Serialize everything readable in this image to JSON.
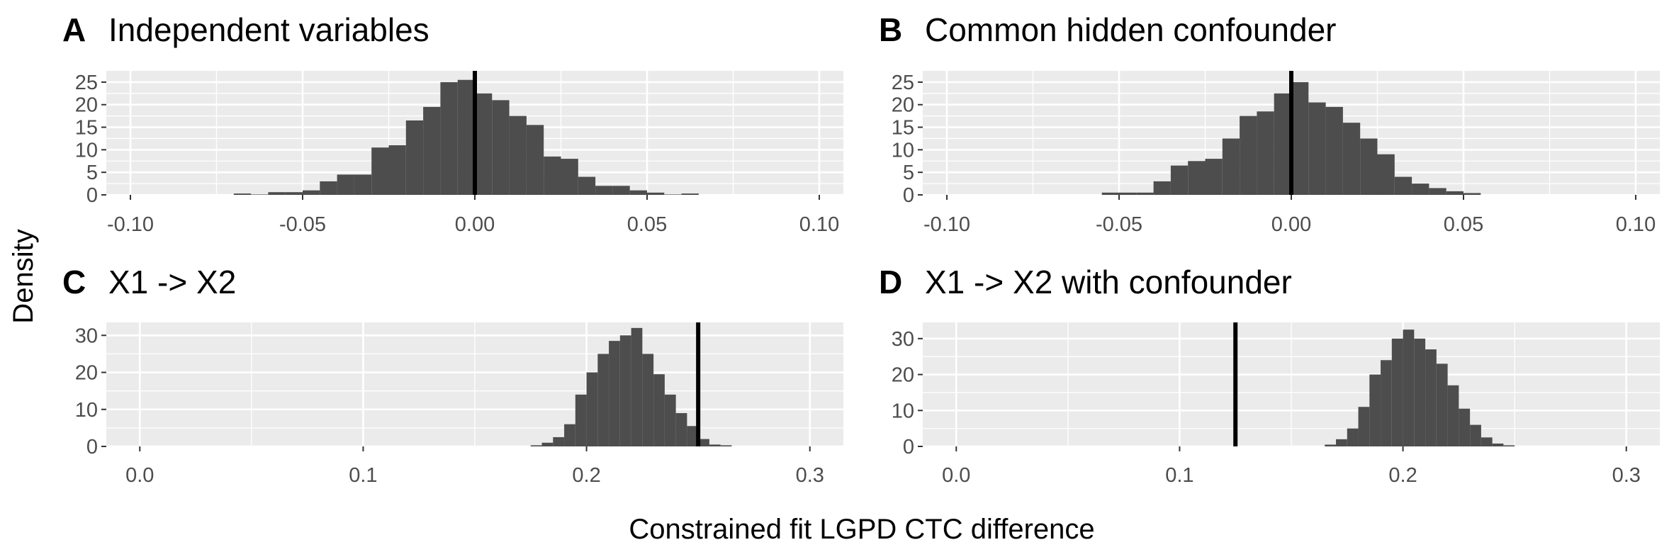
{
  "figure": {
    "ylabel": "Density",
    "xlabel": "Constrained fit LGPD CTC difference"
  },
  "colors": {
    "panel_bg": "#ebebeb",
    "grid": "#ffffff",
    "bar_fill": "#4d4d4d",
    "ref_line": "#000000",
    "tick_text": "#4d4d4d"
  },
  "chart_data": [
    {
      "panel": "A",
      "title": "Independent variables",
      "type": "bar",
      "xlim": [
        -0.107,
        0.107
      ],
      "ylim": [
        0,
        27.5
      ],
      "xticks": [
        -0.1,
        -0.05,
        0.0,
        0.05,
        0.1
      ],
      "xtick_labels": [
        "-0.10",
        "-0.05",
        "0.00",
        "0.05",
        "0.10"
      ],
      "yticks": [
        0,
        5,
        10,
        15,
        20,
        25
      ],
      "ytick_labels": [
        "0",
        "5",
        "10",
        "15",
        "20",
        "25"
      ],
      "binwidth": 0.005,
      "bin_starts": [
        -0.07,
        -0.065,
        -0.06,
        -0.055,
        -0.05,
        -0.045,
        -0.04,
        -0.035,
        -0.03,
        -0.025,
        -0.02,
        -0.015,
        -0.01,
        -0.005,
        0.0,
        0.005,
        0.01,
        0.015,
        0.02,
        0.025,
        0.03,
        0.035,
        0.04,
        0.045,
        0.05,
        0.055,
        0.06,
        0.065
      ],
      "density": [
        0.3,
        0.1,
        0.6,
        0.6,
        1.0,
        3.0,
        4.5,
        4.5,
        10.5,
        11.0,
        16.5,
        19.5,
        25.0,
        25.5,
        22.5,
        21.0,
        17.5,
        15.5,
        8.5,
        8.0,
        4.0,
        2.0,
        2.0,
        1.0,
        0.5,
        0.1,
        0.3,
        0.0
      ],
      "reference_line": 0.0
    },
    {
      "panel": "B",
      "title": "Common hidden confounder",
      "type": "bar",
      "xlim": [
        -0.107,
        0.107
      ],
      "ylim": [
        0,
        27.5
      ],
      "xticks": [
        -0.1,
        -0.05,
        0.0,
        0.05,
        0.1
      ],
      "xtick_labels": [
        "-0.10",
        "-0.05",
        "0.00",
        "0.05",
        "0.10"
      ],
      "yticks": [
        0,
        5,
        10,
        15,
        20,
        25
      ],
      "ytick_labels": [
        "0",
        "5",
        "10",
        "15",
        "20",
        "25"
      ],
      "binwidth": 0.005,
      "bin_starts": [
        -0.055,
        -0.05,
        -0.045,
        -0.04,
        -0.035,
        -0.03,
        -0.025,
        -0.02,
        -0.015,
        -0.01,
        -0.005,
        0.0,
        0.005,
        0.01,
        0.015,
        0.02,
        0.025,
        0.03,
        0.035,
        0.04,
        0.045,
        0.05
      ],
      "density": [
        0.5,
        0.5,
        0.5,
        3.0,
        6.5,
        7.5,
        8.0,
        12.5,
        17.5,
        18.5,
        22.5,
        25.0,
        20.5,
        19.5,
        16.0,
        12.5,
        9.0,
        4.0,
        2.5,
        1.5,
        0.8,
        0.4
      ],
      "reference_line": 0.0
    },
    {
      "panel": "C",
      "title": "X1 -> X2",
      "type": "bar",
      "xlim": [
        -0.015,
        0.315
      ],
      "ylim": [
        0,
        33.5
      ],
      "xticks": [
        0.0,
        0.1,
        0.2,
        0.3
      ],
      "xtick_labels": [
        "0.0",
        "0.1",
        "0.2",
        "0.3"
      ],
      "yticks": [
        0,
        10,
        20,
        30
      ],
      "ytick_labels": [
        "0",
        "10",
        "20",
        "30"
      ],
      "binwidth": 0.005,
      "bin_starts": [
        0.175,
        0.18,
        0.185,
        0.19,
        0.195,
        0.2,
        0.205,
        0.21,
        0.215,
        0.22,
        0.225,
        0.23,
        0.235,
        0.24,
        0.245,
        0.25,
        0.255,
        0.26
      ],
      "density": [
        0.3,
        1.0,
        2.5,
        6.0,
        14.0,
        20.0,
        25.0,
        28.5,
        30.0,
        32.0,
        25.0,
        19.5,
        14.0,
        9.0,
        5.5,
        2.0,
        0.5,
        0.3
      ],
      "reference_line": 0.25
    },
    {
      "panel": "D",
      "title": "X1 -> X2 with confounder",
      "type": "bar",
      "xlim": [
        -0.015,
        0.315
      ],
      "ylim": [
        0,
        34.5
      ],
      "xticks": [
        0.0,
        0.1,
        0.2,
        0.3
      ],
      "xtick_labels": [
        "0.0",
        "0.1",
        "0.2",
        "0.3"
      ],
      "yticks": [
        0,
        10,
        20,
        30
      ],
      "ytick_labels": [
        "0",
        "10",
        "20",
        "30"
      ],
      "binwidth": 0.005,
      "bin_starts": [
        0.165,
        0.17,
        0.175,
        0.18,
        0.185,
        0.19,
        0.195,
        0.2,
        0.205,
        0.21,
        0.215,
        0.22,
        0.225,
        0.23,
        0.235,
        0.24,
        0.245
      ],
      "density": [
        0.5,
        2.0,
        5.0,
        11.0,
        20.0,
        24.0,
        30.0,
        32.5,
        30.0,
        27.0,
        23.0,
        17.0,
        10.5,
        6.0,
        2.5,
        0.8,
        0.3
      ],
      "reference_line": 0.125
    }
  ]
}
